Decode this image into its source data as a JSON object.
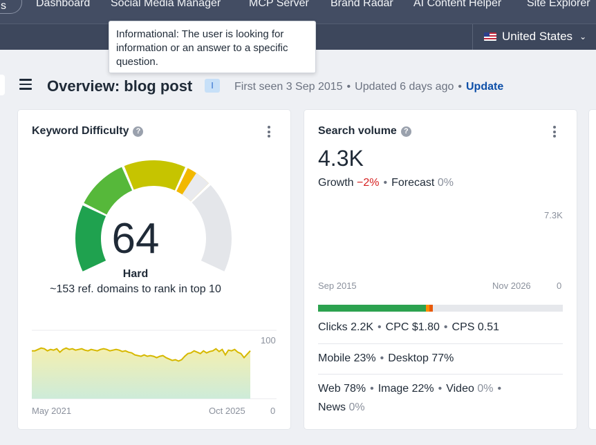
{
  "topnav": {
    "partial_item": "s",
    "items": [
      "Dashboard",
      "Social Media Manager",
      "MCP Server",
      "Brand Radar",
      "AI Content Helper",
      "Site Explorer"
    ]
  },
  "country": {
    "label": "United States",
    "icon": "us-flag-icon"
  },
  "tooltip": {
    "text": "Informational: The user is looking for information or an answer to a specific question."
  },
  "header": {
    "title": "Overview: blog post",
    "intent_badge": "I",
    "first_seen": "First seen 3 Sep 2015",
    "updated": "Updated 6 days ago",
    "update_link": "Update"
  },
  "keyword_difficulty": {
    "title": "Keyword Difficulty",
    "value": "64",
    "score": 64,
    "label": "Hard",
    "description": "~153 ref. domains to rank in top 10",
    "trend": {
      "x_start": "May 2021",
      "x_end": "Oct 2025",
      "y_max": "100",
      "y_min": "0"
    }
  },
  "search_volume": {
    "title": "Search volume",
    "value": "4.3K",
    "growth_label": "Growth",
    "growth_value": "−2%",
    "forecast_label": "Forecast",
    "forecast_value": "0%",
    "chart": {
      "x_start": "Sep 2015",
      "x_end": "Nov 2026",
      "y_max": "7.3K",
      "y_min": "0"
    },
    "clicks": "Clicks 2.2K",
    "cpc": "CPC $1.80",
    "cps": "CPS 0.51",
    "mobile": "Mobile 23%",
    "desktop": "Desktop 77%",
    "web": "Web 78%",
    "image": "Image 22%",
    "video_label": "Video",
    "video_value": "0%",
    "news_label": "News",
    "news_value": "0%",
    "click_bar": {
      "organic": 0.44,
      "paid": 0.015,
      "other": 0.015
    }
  },
  "colors": {
    "nav_bg": "#434d63",
    "link": "#0d4fa8",
    "negative": "#d61f1f",
    "volume_line": "#3a86d6",
    "forecast": "#ff8c00",
    "kd_line": "#d6b800"
  }
}
